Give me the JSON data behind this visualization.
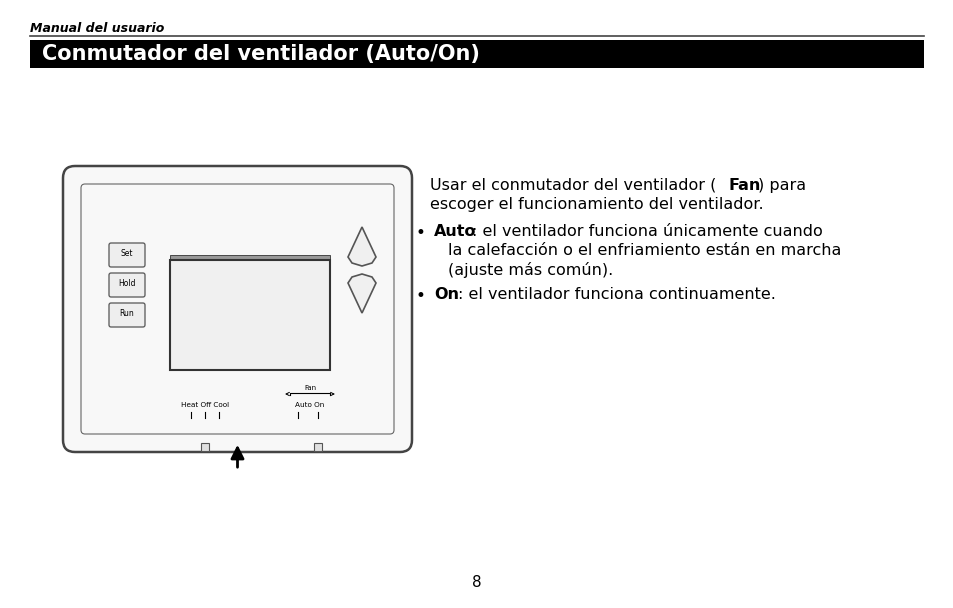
{
  "bg_color": "#ffffff",
  "header_italic": "Manual del usuario",
  "title_text": "Conmutador del ventilador (Auto/On)",
  "title_bg": "#000000",
  "title_fg": "#ffffff",
  "page_number": "8",
  "thermostat_labels_left": "Heat Off Cool",
  "thermostat_labels_right": "Auto On",
  "thermostat_label_fan": "Fan",
  "button_labels": [
    "Set",
    "Hold",
    "Run"
  ]
}
